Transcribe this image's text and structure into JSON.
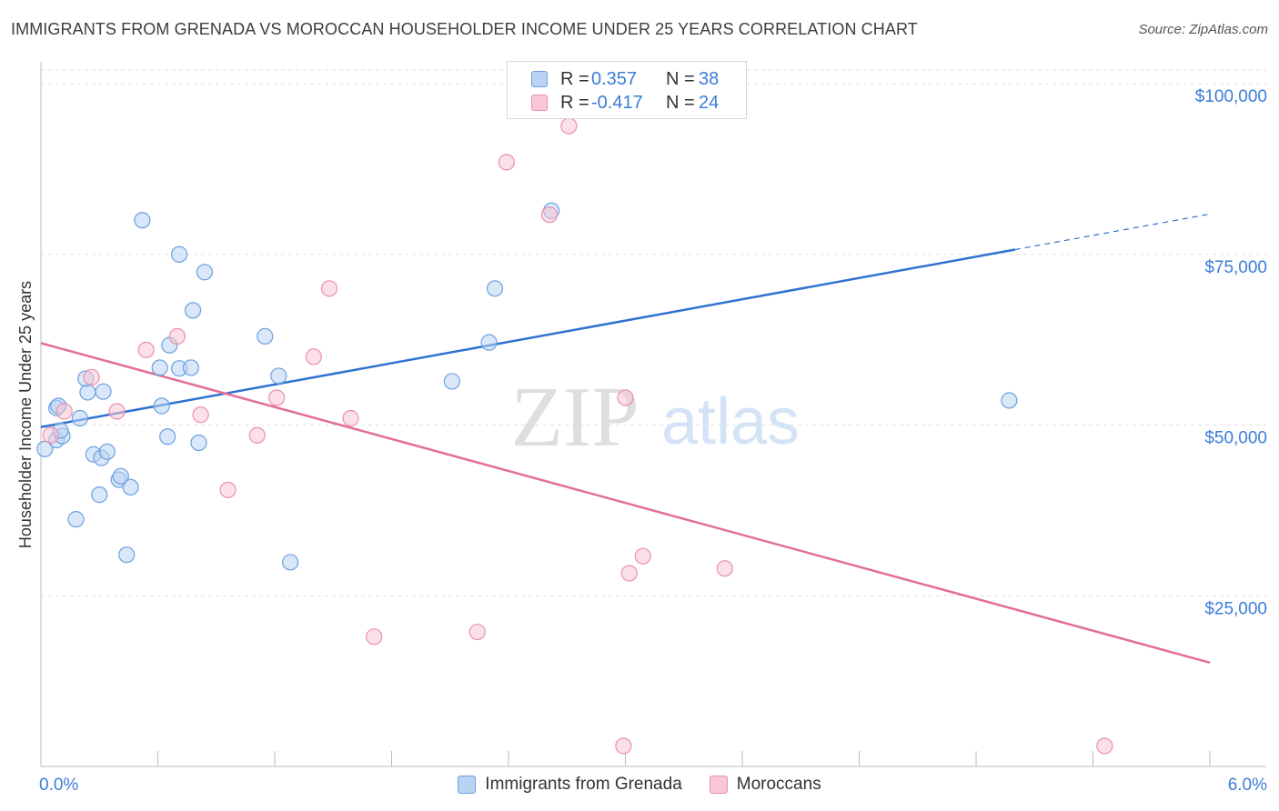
{
  "header": {
    "title": "IMMIGRANTS FROM GRENADA VS MOROCCAN HOUSEHOLDER INCOME UNDER 25 YEARS CORRELATION CHART",
    "source": "Source: ZipAtlas.com"
  },
  "watermark": {
    "zip": "ZIP",
    "atlas": "atlas"
  },
  "legend": {
    "r_label": "R =",
    "n_label": "N =",
    "series": [
      {
        "r": "0.357",
        "n": "38"
      },
      {
        "r": "-0.417",
        "n": "24"
      }
    ]
  },
  "colors": {
    "blue_fill": "#b9d4f3",
    "blue_stroke": "#6ba0e0",
    "blue_line": "#2f72d0",
    "pink_fill": "#f9c6d6",
    "pink_stroke": "#eb8fae",
    "pink_line": "#e36e98",
    "axis_label": "#3b7dd8"
  },
  "chart_data": {
    "type": "scatter",
    "title": "IMMIGRANTS FROM GRENADA VS MOROCCAN HOUSEHOLDER INCOME UNDER 25 YEARS CORRELATION CHART",
    "xlabel": "",
    "ylabel": "Householder Income Under 25 years",
    "xlim": [
      0,
      6
    ],
    "ylim": [
      0,
      102000
    ],
    "x_tick_labels": [
      "0.0%",
      "6.0%"
    ],
    "y_ticks": [
      25000,
      50000,
      75000,
      100000
    ],
    "y_tick_labels": [
      "$25,000",
      "$50,000",
      "$75,000",
      "$100,000"
    ],
    "grid": true,
    "legend_position": "top-center",
    "series": [
      {
        "name": "Immigrants from Grenada",
        "points": [
          [
            0.02,
            46500
          ],
          [
            0.08,
            47800
          ],
          [
            0.11,
            48400
          ],
          [
            0.1,
            49200
          ],
          [
            0.2,
            51000
          ],
          [
            0.08,
            52500
          ],
          [
            0.09,
            52800
          ],
          [
            0.24,
            54800
          ],
          [
            0.32,
            54900
          ],
          [
            0.23,
            56800
          ],
          [
            0.18,
            36200
          ],
          [
            0.3,
            39800
          ],
          [
            0.27,
            45700
          ],
          [
            0.31,
            45200
          ],
          [
            0.34,
            46100
          ],
          [
            0.4,
            42000
          ],
          [
            0.41,
            42500
          ],
          [
            0.46,
            40900
          ],
          [
            0.44,
            31000
          ],
          [
            0.52,
            80000
          ],
          [
            0.62,
            52800
          ],
          [
            0.61,
            58400
          ],
          [
            0.66,
            61700
          ],
          [
            0.65,
            48300
          ],
          [
            0.71,
            58300
          ],
          [
            0.77,
            58400
          ],
          [
            0.71,
            75000
          ],
          [
            0.81,
            47400
          ],
          [
            0.78,
            66800
          ],
          [
            0.84,
            72400
          ],
          [
            1.15,
            63000
          ],
          [
            1.22,
            57200
          ],
          [
            1.28,
            29900
          ],
          [
            2.11,
            56400
          ],
          [
            2.3,
            62100
          ],
          [
            2.33,
            70000
          ],
          [
            2.62,
            81400
          ],
          [
            4.97,
            53600
          ]
        ],
        "trend": {
          "x": [
            0.0,
            5.0
          ],
          "y": [
            49700,
            75700
          ],
          "dashed_to": [
            6.0,
            80900
          ]
        }
      },
      {
        "name": "Moroccans",
        "points": [
          [
            0.05,
            48500
          ],
          [
            0.12,
            52000
          ],
          [
            0.26,
            57000
          ],
          [
            0.39,
            52000
          ],
          [
            0.54,
            61000
          ],
          [
            0.7,
            63000
          ],
          [
            0.82,
            51500
          ],
          [
            0.96,
            40500
          ],
          [
            1.11,
            48500
          ],
          [
            1.21,
            54000
          ],
          [
            1.4,
            60000
          ],
          [
            1.48,
            70000
          ],
          [
            1.59,
            51000
          ],
          [
            1.71,
            19000
          ],
          [
            2.24,
            19700
          ],
          [
            2.39,
            88500
          ],
          [
            2.61,
            80800
          ],
          [
            2.71,
            93800
          ],
          [
            2.99,
            3000
          ],
          [
            3.0,
            54000
          ],
          [
            3.02,
            28300
          ],
          [
            3.09,
            30800
          ],
          [
            3.51,
            29000
          ],
          [
            5.46,
            3000
          ]
        ],
        "trend": {
          "x": [
            0.0,
            6.0
          ],
          "y": [
            62000,
            15200
          ]
        }
      }
    ]
  }
}
